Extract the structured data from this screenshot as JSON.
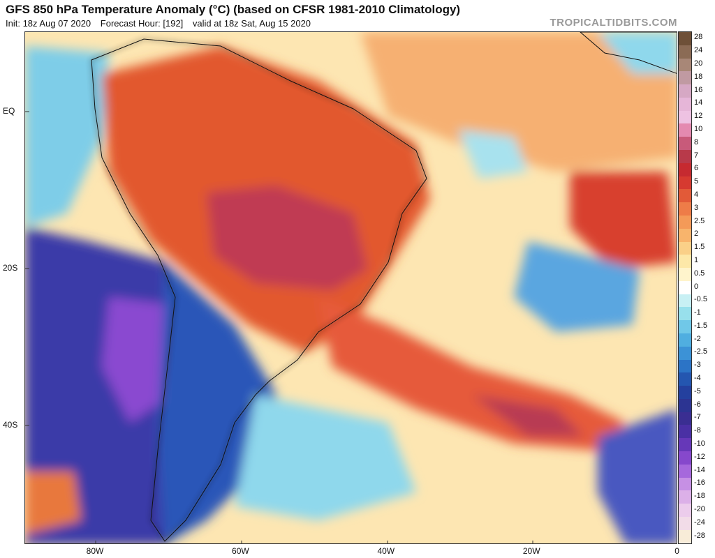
{
  "header": {
    "title": "GFS 850 hPa Temperature Anomaly (°C) (based on CFSR 1981-2010 Climatology)",
    "init": "Init: 18z Aug 07 2020",
    "forecast_hour": "Forecast Hour: [192]",
    "valid": "valid at 18z Sat, Aug 15 2020",
    "watermark": "TROPICALTIDBITS.COM"
  },
  "axes": {
    "lat_labels": [
      {
        "text": "EQ",
        "lat": 0
      },
      {
        "text": "20S",
        "lat": -20
      },
      {
        "text": "40S",
        "lat": -40
      }
    ],
    "lon_labels": [
      {
        "text": "80W",
        "lon": -80
      },
      {
        "text": "60W",
        "lon": -60
      },
      {
        "text": "40W",
        "lon": -40
      },
      {
        "text": "20W",
        "lon": -20
      },
      {
        "text": "0",
        "lon": 0
      }
    ]
  },
  "colorbar": {
    "labels": [
      "28",
      "24",
      "20",
      "18",
      "16",
      "14",
      "12",
      "10",
      "8",
      "7",
      "6",
      "5",
      "4",
      "3",
      "2.5",
      "2",
      "1.5",
      "1",
      "0.5",
      "0",
      "-0.5",
      "-1",
      "-1.5",
      "-2",
      "-2.5",
      "-3",
      "-4",
      "-5",
      "-6",
      "-7",
      "-8",
      "-10",
      "-12",
      "-14",
      "-16",
      "-18",
      "-20",
      "-24",
      "-28"
    ],
    "colors": [
      "#6e5038",
      "#8b6b55",
      "#a88777",
      "#c09aa2",
      "#d6a8c4",
      "#e6b6d8",
      "#eec2e2",
      "#e48ab0",
      "#c85a7a",
      "#b83a4a",
      "#c62a30",
      "#d63a30",
      "#e25a38",
      "#ee7c48",
      "#f49a58",
      "#f8b46c",
      "#fad088",
      "#fde8a8",
      "#fff4cc",
      "#ffffff",
      "#c8f0f4",
      "#98e0ec",
      "#70c8e8",
      "#50aee0",
      "#3c92d6",
      "#2c74c6",
      "#2456b0",
      "#24409e",
      "#2c3492",
      "#3a2e92",
      "#4a30a4",
      "#6638b8",
      "#8648cc",
      "#a668dc",
      "#c690e4",
      "#dcb0e8",
      "#ecccec",
      "#f2dce8",
      "#f8ecd8"
    ]
  },
  "legend_symbols": {
    "watermark_style": "light gray text"
  }
}
